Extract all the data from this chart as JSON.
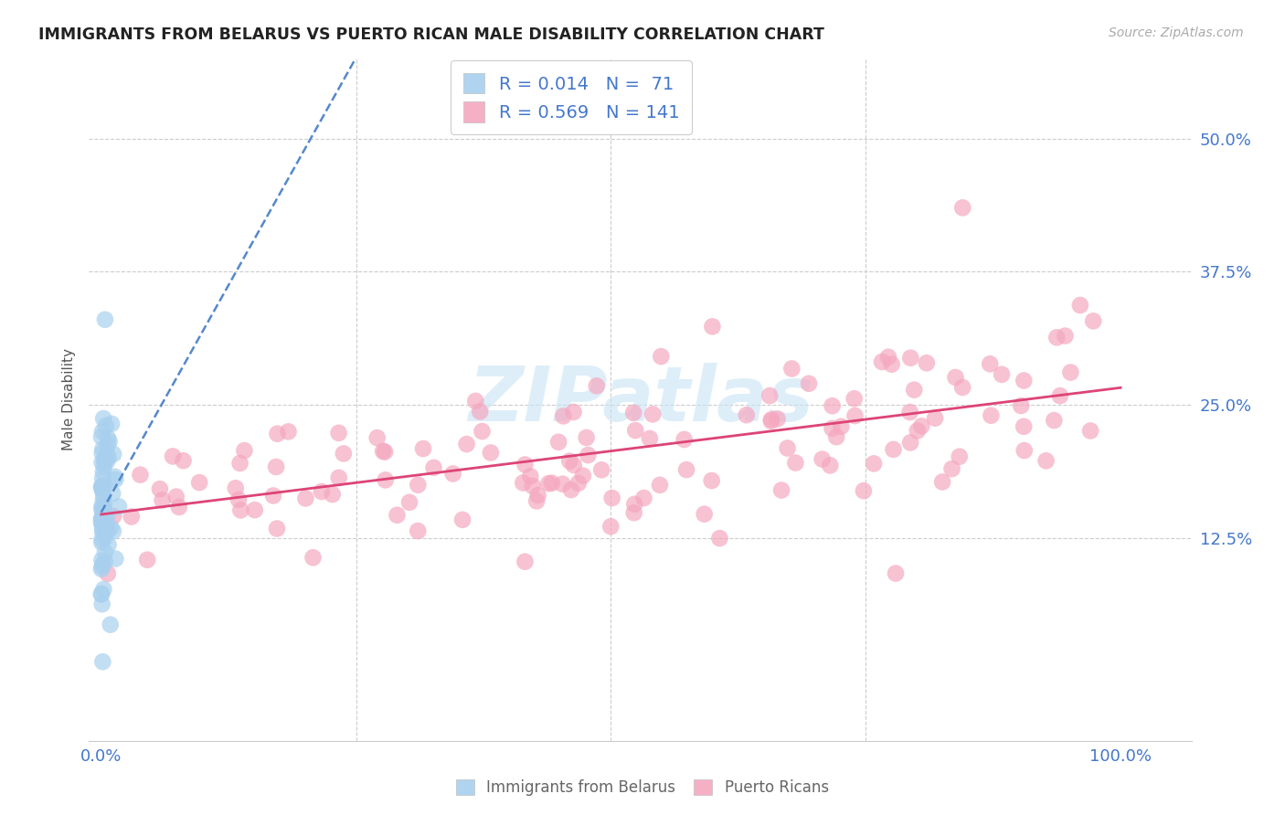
{
  "title": "IMMIGRANTS FROM BELARUS VS PUERTO RICAN MALE DISABILITY CORRELATION CHART",
  "source": "Source: ZipAtlas.com",
  "ylabel": "Male Disability",
  "ytick_labels": [
    "12.5%",
    "25.0%",
    "37.5%",
    "50.0%"
  ],
  "ytick_values": [
    0.125,
    0.25,
    0.375,
    0.5
  ],
  "xtick_labels": [
    "0.0%",
    "100.0%"
  ],
  "xtick_values": [
    0.0,
    1.0
  ],
  "xlim": [
    -0.012,
    1.07
  ],
  "ylim": [
    -0.065,
    0.575
  ],
  "legend_blue_R": "R = 0.014",
  "legend_blue_N": "N =  71",
  "legend_pink_R": "R = 0.569",
  "legend_pink_N": "N = 141",
  "blue_scatter_color": "#A8D0EE",
  "pink_scatter_color": "#F5A8C0",
  "blue_line_color": "#5588CC",
  "pink_line_color": "#DD4477",
  "label_color": "#4477CC",
  "watermark_color": "#C8E4F5",
  "grid_color": "#CCCCCC",
  "title_color": "#222222",
  "source_color": "#AAAAAA",
  "legend_label_blue": "Immigrants from Belarus",
  "legend_label_pink": "Puerto Ricans",
  "n_blue": 71,
  "n_pink": 141,
  "blue_seed": 42,
  "pink_seed": 7
}
